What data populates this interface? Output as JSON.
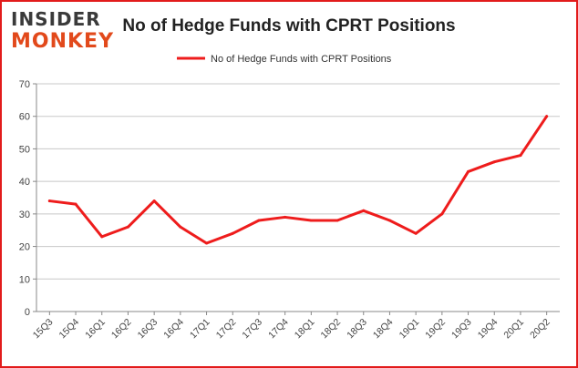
{
  "brand": {
    "logo_line1": "INSIDER",
    "logo_line2": "MONKEY",
    "logo_color_dark": "#3a3a3a",
    "logo_color_accent": "#e2491b"
  },
  "chart_data": {
    "type": "line",
    "title": "No of Hedge Funds with CPRT Positions",
    "xlabel": "",
    "ylabel": "",
    "categories": [
      "15Q3",
      "15Q4",
      "16Q1",
      "16Q2",
      "16Q3",
      "16Q4",
      "17Q1",
      "17Q2",
      "17Q3",
      "17Q4",
      "18Q1",
      "18Q2",
      "18Q3",
      "18Q4",
      "19Q1",
      "19Q2",
      "19Q3",
      "19Q4",
      "20Q1",
      "20Q2"
    ],
    "series": [
      {
        "name": "No of Hedge Funds with CPRT Positions",
        "color": "#ee1c1c",
        "values": [
          34,
          33,
          23,
          26,
          34,
          26,
          21,
          24,
          28,
          29,
          28,
          28,
          31,
          28,
          24,
          30,
          43,
          46,
          48,
          60
        ]
      }
    ],
    "ylim": [
      0,
      70
    ],
    "yticks": [
      0,
      10,
      20,
      30,
      40,
      50,
      60,
      70
    ],
    "grid": true,
    "legend_position": "top-center"
  }
}
